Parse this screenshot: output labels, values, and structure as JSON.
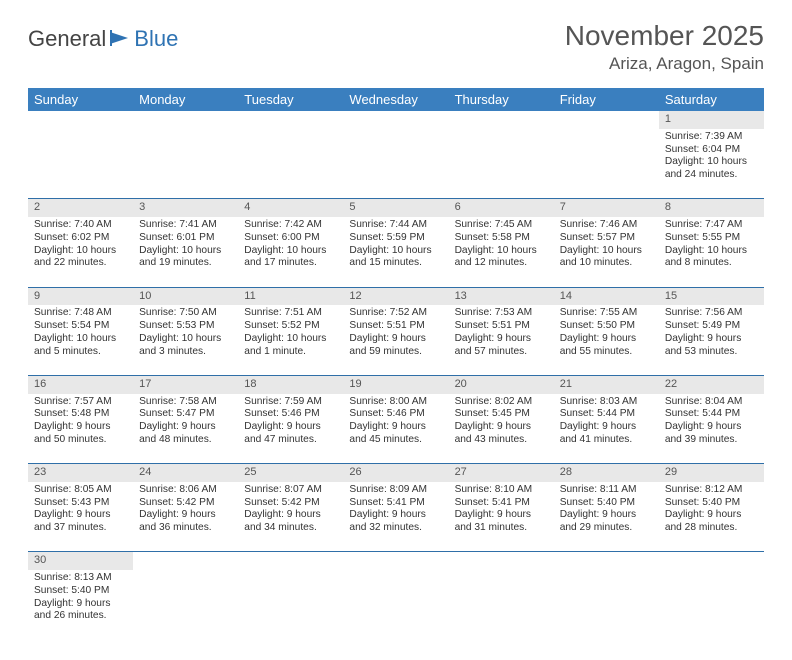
{
  "logo": {
    "part1": "General",
    "part2": "Blue"
  },
  "title": "November 2025",
  "location": "Ariza, Aragon, Spain",
  "colors": {
    "header_bg": "#3a7fbf",
    "header_text": "#ffffff",
    "daynum_bg": "#e8e8e8",
    "row_border": "#2f6fa8",
    "body_text": "#333333",
    "title_text": "#555555"
  },
  "weekdays": [
    "Sunday",
    "Monday",
    "Tuesday",
    "Wednesday",
    "Thursday",
    "Friday",
    "Saturday"
  ],
  "weeks": [
    [
      null,
      null,
      null,
      null,
      null,
      null,
      {
        "n": "1",
        "sr": "Sunrise: 7:39 AM",
        "ss": "Sunset: 6:04 PM",
        "dl": "Daylight: 10 hours and 24 minutes."
      }
    ],
    [
      {
        "n": "2",
        "sr": "Sunrise: 7:40 AM",
        "ss": "Sunset: 6:02 PM",
        "dl": "Daylight: 10 hours and 22 minutes."
      },
      {
        "n": "3",
        "sr": "Sunrise: 7:41 AM",
        "ss": "Sunset: 6:01 PM",
        "dl": "Daylight: 10 hours and 19 minutes."
      },
      {
        "n": "4",
        "sr": "Sunrise: 7:42 AM",
        "ss": "Sunset: 6:00 PM",
        "dl": "Daylight: 10 hours and 17 minutes."
      },
      {
        "n": "5",
        "sr": "Sunrise: 7:44 AM",
        "ss": "Sunset: 5:59 PM",
        "dl": "Daylight: 10 hours and 15 minutes."
      },
      {
        "n": "6",
        "sr": "Sunrise: 7:45 AM",
        "ss": "Sunset: 5:58 PM",
        "dl": "Daylight: 10 hours and 12 minutes."
      },
      {
        "n": "7",
        "sr": "Sunrise: 7:46 AM",
        "ss": "Sunset: 5:57 PM",
        "dl": "Daylight: 10 hours and 10 minutes."
      },
      {
        "n": "8",
        "sr": "Sunrise: 7:47 AM",
        "ss": "Sunset: 5:55 PM",
        "dl": "Daylight: 10 hours and 8 minutes."
      }
    ],
    [
      {
        "n": "9",
        "sr": "Sunrise: 7:48 AM",
        "ss": "Sunset: 5:54 PM",
        "dl": "Daylight: 10 hours and 5 minutes."
      },
      {
        "n": "10",
        "sr": "Sunrise: 7:50 AM",
        "ss": "Sunset: 5:53 PM",
        "dl": "Daylight: 10 hours and 3 minutes."
      },
      {
        "n": "11",
        "sr": "Sunrise: 7:51 AM",
        "ss": "Sunset: 5:52 PM",
        "dl": "Daylight: 10 hours and 1 minute."
      },
      {
        "n": "12",
        "sr": "Sunrise: 7:52 AM",
        "ss": "Sunset: 5:51 PM",
        "dl": "Daylight: 9 hours and 59 minutes."
      },
      {
        "n": "13",
        "sr": "Sunrise: 7:53 AM",
        "ss": "Sunset: 5:51 PM",
        "dl": "Daylight: 9 hours and 57 minutes."
      },
      {
        "n": "14",
        "sr": "Sunrise: 7:55 AM",
        "ss": "Sunset: 5:50 PM",
        "dl": "Daylight: 9 hours and 55 minutes."
      },
      {
        "n": "15",
        "sr": "Sunrise: 7:56 AM",
        "ss": "Sunset: 5:49 PM",
        "dl": "Daylight: 9 hours and 53 minutes."
      }
    ],
    [
      {
        "n": "16",
        "sr": "Sunrise: 7:57 AM",
        "ss": "Sunset: 5:48 PM",
        "dl": "Daylight: 9 hours and 50 minutes."
      },
      {
        "n": "17",
        "sr": "Sunrise: 7:58 AM",
        "ss": "Sunset: 5:47 PM",
        "dl": "Daylight: 9 hours and 48 minutes."
      },
      {
        "n": "18",
        "sr": "Sunrise: 7:59 AM",
        "ss": "Sunset: 5:46 PM",
        "dl": "Daylight: 9 hours and 47 minutes."
      },
      {
        "n": "19",
        "sr": "Sunrise: 8:00 AM",
        "ss": "Sunset: 5:46 PM",
        "dl": "Daylight: 9 hours and 45 minutes."
      },
      {
        "n": "20",
        "sr": "Sunrise: 8:02 AM",
        "ss": "Sunset: 5:45 PM",
        "dl": "Daylight: 9 hours and 43 minutes."
      },
      {
        "n": "21",
        "sr": "Sunrise: 8:03 AM",
        "ss": "Sunset: 5:44 PM",
        "dl": "Daylight: 9 hours and 41 minutes."
      },
      {
        "n": "22",
        "sr": "Sunrise: 8:04 AM",
        "ss": "Sunset: 5:44 PM",
        "dl": "Daylight: 9 hours and 39 minutes."
      }
    ],
    [
      {
        "n": "23",
        "sr": "Sunrise: 8:05 AM",
        "ss": "Sunset: 5:43 PM",
        "dl": "Daylight: 9 hours and 37 minutes."
      },
      {
        "n": "24",
        "sr": "Sunrise: 8:06 AM",
        "ss": "Sunset: 5:42 PM",
        "dl": "Daylight: 9 hours and 36 minutes."
      },
      {
        "n": "25",
        "sr": "Sunrise: 8:07 AM",
        "ss": "Sunset: 5:42 PM",
        "dl": "Daylight: 9 hours and 34 minutes."
      },
      {
        "n": "26",
        "sr": "Sunrise: 8:09 AM",
        "ss": "Sunset: 5:41 PM",
        "dl": "Daylight: 9 hours and 32 minutes."
      },
      {
        "n": "27",
        "sr": "Sunrise: 8:10 AM",
        "ss": "Sunset: 5:41 PM",
        "dl": "Daylight: 9 hours and 31 minutes."
      },
      {
        "n": "28",
        "sr": "Sunrise: 8:11 AM",
        "ss": "Sunset: 5:40 PM",
        "dl": "Daylight: 9 hours and 29 minutes."
      },
      {
        "n": "29",
        "sr": "Sunrise: 8:12 AM",
        "ss": "Sunset: 5:40 PM",
        "dl": "Daylight: 9 hours and 28 minutes."
      }
    ],
    [
      {
        "n": "30",
        "sr": "Sunrise: 8:13 AM",
        "ss": "Sunset: 5:40 PM",
        "dl": "Daylight: 9 hours and 26 minutes."
      },
      null,
      null,
      null,
      null,
      null,
      null
    ]
  ]
}
